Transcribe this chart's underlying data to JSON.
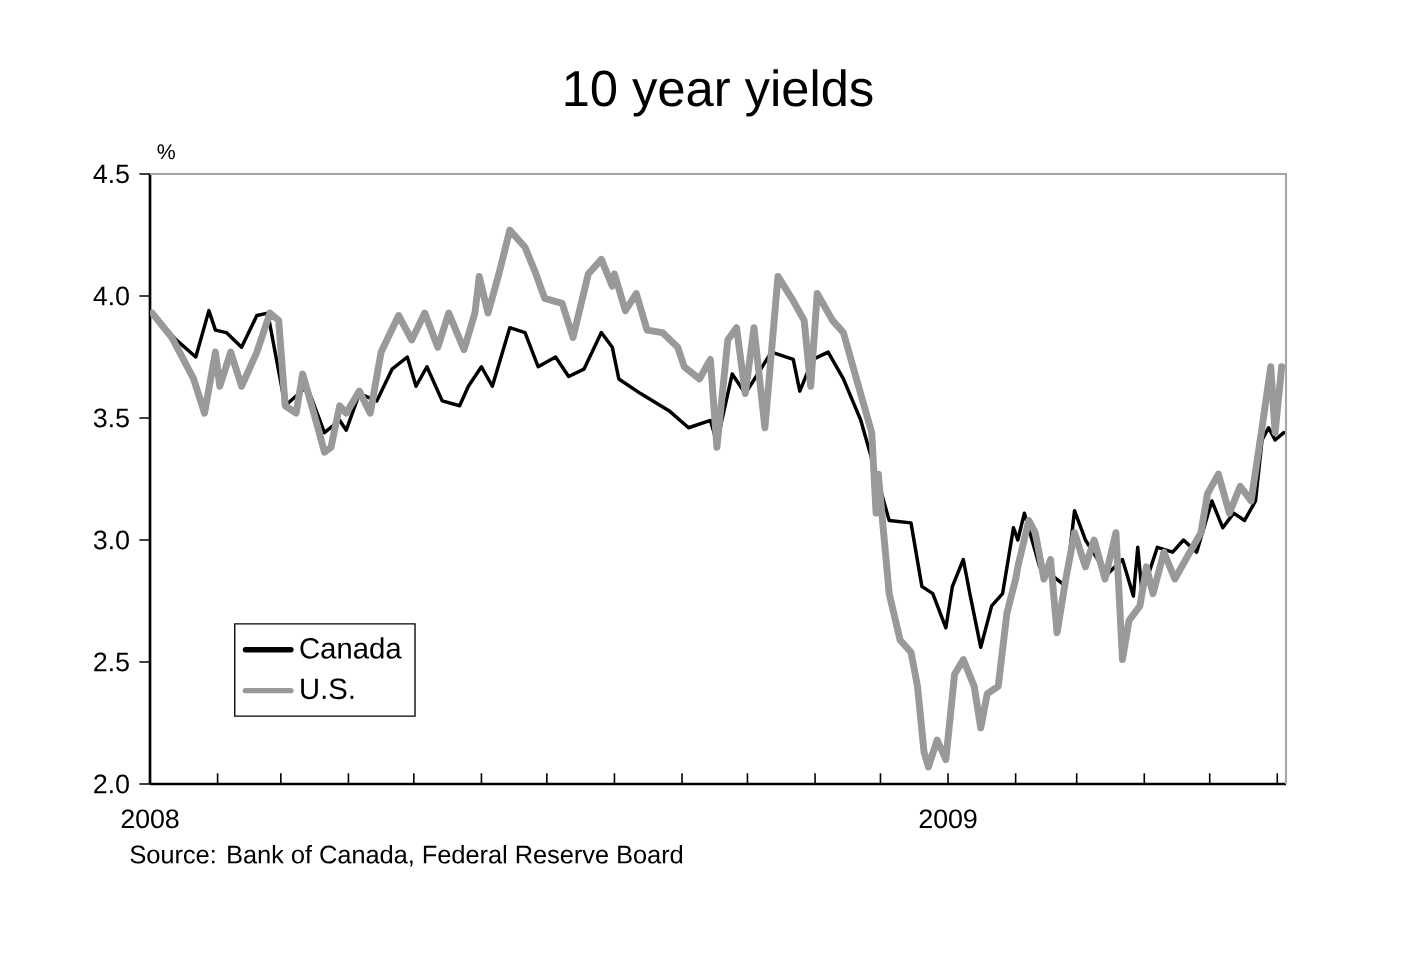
{
  "chart_data": {
    "type": "line",
    "title": "10 year yields",
    "ylabel": "%",
    "annotations": [
      "Source: Bank of Canada, Federal Reserve Board"
    ],
    "xlim": [
      "2008-01-01",
      "2009-06-05"
    ],
    "xticks": [
      {
        "value": "2008-01-01",
        "label": "2008"
      },
      {
        "value": "2008-02-01",
        "label": null
      },
      {
        "value": "2008-03-01",
        "label": null
      },
      {
        "value": "2008-04-01",
        "label": null
      },
      {
        "value": "2008-05-01",
        "label": null
      },
      {
        "value": "2008-06-01",
        "label": null
      },
      {
        "value": "2008-07-01",
        "label": null
      },
      {
        "value": "2008-08-01",
        "label": null
      },
      {
        "value": "2008-09-01",
        "label": null
      },
      {
        "value": "2008-10-01",
        "label": null
      },
      {
        "value": "2008-11-01",
        "label": null
      },
      {
        "value": "2008-12-01",
        "label": null
      },
      {
        "value": "2009-01-01",
        "label": "2009"
      },
      {
        "value": "2009-02-01",
        "label": null
      },
      {
        "value": "2009-03-01",
        "label": null
      },
      {
        "value": "2009-04-01",
        "label": null
      },
      {
        "value": "2009-05-01",
        "label": null
      },
      {
        "value": "2009-06-01",
        "label": null
      }
    ],
    "ylim": [
      2,
      4.5
    ],
    "yticks": [
      {
        "value": 2,
        "label": "2.0"
      },
      {
        "value": 2.5,
        "label": "2.5"
      },
      {
        "value": 3,
        "label": "3.0"
      },
      {
        "value": 3.5,
        "label": "3.5"
      },
      {
        "value": 4,
        "label": "4.0"
      },
      {
        "value": 4.5,
        "label": "4.5"
      }
    ],
    "legend": "bottom left",
    "grid": false,
    "marker": "none",
    "line_style": "solid",
    "series": [
      {
        "name": "Canada",
        "color": "#000000",
        "x": [
          "2008-01-02",
          "2008-01-13",
          "2008-01-22",
          "2008-01-28",
          "2008-01-31",
          "2008-02-05",
          "2008-02-12",
          "2008-02-19",
          "2008-02-24",
          "2008-03-03",
          "2008-03-13",
          "2008-03-21",
          "2008-03-28",
          "2008-03-31",
          "2008-04-06",
          "2008-04-14",
          "2008-04-21",
          "2008-04-28",
          "2008-05-02",
          "2008-05-07",
          "2008-05-14",
          "2008-05-22",
          "2008-05-26",
          "2008-06-01",
          "2008-06-06",
          "2008-06-14",
          "2008-06-21",
          "2008-06-27",
          "2008-07-05",
          "2008-07-11",
          "2008-07-18",
          "2008-07-26",
          "2008-07-31",
          "2008-08-03",
          "2008-08-13",
          "2008-08-26",
          "2008-09-04",
          "2008-09-14",
          "2008-09-17",
          "2008-09-24",
          "2008-09-30",
          "2008-10-12",
          "2008-10-22",
          "2008-10-25",
          "2008-10-31",
          "2008-11-07",
          "2008-11-14",
          "2008-11-22",
          "2008-11-29",
          "2008-12-05",
          "2008-12-15",
          "2008-12-20",
          "2008-12-25",
          "2008-12-31",
          "2009-01-03",
          "2009-01-08",
          "2009-01-11",
          "2009-01-16",
          "2009-01-21",
          "2009-01-26",
          "2009-01-31",
          "2009-02-02",
          "2009-02-05",
          "2009-02-12",
          "2009-02-17",
          "2009-02-24",
          "2009-02-28",
          "2009-03-05",
          "2009-03-15",
          "2009-03-22",
          "2009-03-27",
          "2009-03-29",
          "2009-03-31",
          "2009-04-07",
          "2009-04-14",
          "2009-04-19",
          "2009-04-25",
          "2009-05-02",
          "2009-05-07",
          "2009-05-12",
          "2009-05-17",
          "2009-05-22",
          "2009-05-25",
          "2009-05-28",
          "2009-05-31",
          "2009-06-04"
        ],
        "values": [
          3.93,
          3.82,
          3.75,
          3.94,
          3.86,
          3.85,
          3.79,
          3.92,
          3.93,
          3.55,
          3.63,
          3.44,
          3.49,
          3.45,
          3.6,
          3.57,
          3.7,
          3.75,
          3.63,
          3.71,
          3.57,
          3.55,
          3.63,
          3.71,
          3.63,
          3.87,
          3.85,
          3.71,
          3.75,
          3.67,
          3.7,
          3.85,
          3.79,
          3.66,
          3.6,
          3.53,
          3.46,
          3.49,
          3.4,
          3.68,
          3.6,
          3.77,
          3.74,
          3.61,
          3.74,
          3.77,
          3.66,
          3.49,
          3.27,
          3.08,
          3.07,
          2.81,
          2.78,
          2.64,
          2.81,
          2.92,
          2.78,
          2.56,
          2.73,
          2.78,
          3.05,
          3.0,
          3.11,
          2.89,
          2.86,
          2.81,
          3.12,
          3.0,
          2.86,
          2.92,
          2.77,
          2.97,
          2.78,
          2.97,
          2.95,
          3.0,
          2.95,
          3.16,
          3.05,
          3.11,
          3.08,
          3.16,
          3.41,
          3.46,
          3.41,
          3.44
        ]
      },
      {
        "name": "U.S.",
        "color": "#999999",
        "x": [
          "2008-01-02",
          "2008-01-11",
          "2008-01-21",
          "2008-01-26",
          "2008-01-31",
          "2008-02-02",
          "2008-02-07",
          "2008-02-12",
          "2008-02-19",
          "2008-02-25",
          "2008-02-29",
          "2008-03-03",
          "2008-03-08",
          "2008-03-11",
          "2008-03-18",
          "2008-03-21",
          "2008-03-24",
          "2008-03-28",
          "2008-03-31",
          "2008-04-06",
          "2008-04-11",
          "2008-04-16",
          "2008-04-24",
          "2008-04-30",
          "2008-05-06",
          "2008-05-12",
          "2008-05-17",
          "2008-05-24",
          "2008-05-29",
          "2008-05-31",
          "2008-06-04",
          "2008-06-09",
          "2008-06-14",
          "2008-06-21",
          "2008-06-26",
          "2008-06-30",
          "2008-07-08",
          "2008-07-13",
          "2008-07-20",
          "2008-07-26",
          "2008-07-31",
          "2008-08-01",
          "2008-08-06",
          "2008-08-11",
          "2008-08-16",
          "2008-08-23",
          "2008-08-30",
          "2008-09-02",
          "2008-09-09",
          "2008-09-14",
          "2008-09-17",
          "2008-09-22",
          "2008-09-26",
          "2008-09-30",
          "2008-10-04",
          "2008-10-09",
          "2008-10-15",
          "2008-10-22",
          "2008-10-27",
          "2008-10-30",
          "2008-11-02",
          "2008-11-09",
          "2008-11-14",
          "2008-11-20",
          "2008-11-27",
          "2008-11-29",
          "2008-11-30",
          "2008-12-05",
          "2008-12-10",
          "2008-12-15",
          "2008-12-18",
          "2008-12-21",
          "2008-12-23",
          "2008-12-27",
          "2008-12-31",
          "2009-01-04",
          "2009-01-08",
          "2009-01-13",
          "2009-01-16",
          "2009-01-19",
          "2009-01-24",
          "2009-01-28",
          "2009-02-01",
          "2009-02-02",
          "2009-02-07",
          "2009-02-10",
          "2009-02-14",
          "2009-02-17",
          "2009-02-20",
          "2009-02-24",
          "2009-02-28",
          "2009-03-05",
          "2009-03-09",
          "2009-03-14",
          "2009-03-19",
          "2009-03-22",
          "2009-03-25",
          "2009-03-30",
          "2009-04-02",
          "2009-04-05",
          "2009-04-10",
          "2009-04-15",
          "2009-04-20",
          "2009-04-27",
          "2009-04-30",
          "2009-05-05",
          "2009-05-10",
          "2009-05-15",
          "2009-05-20",
          "2009-05-25",
          "2009-05-29",
          "2009-05-31",
          "2009-06-03"
        ],
        "values": [
          3.93,
          3.83,
          3.66,
          3.52,
          3.77,
          3.63,
          3.77,
          3.63,
          3.77,
          3.93,
          3.9,
          3.55,
          3.52,
          3.68,
          3.46,
          3.36,
          3.38,
          3.55,
          3.52,
          3.61,
          3.52,
          3.77,
          3.92,
          3.82,
          3.93,
          3.79,
          3.93,
          3.78,
          3.93,
          4.08,
          3.93,
          4.09,
          4.27,
          4.2,
          4.09,
          3.99,
          3.97,
          3.83,
          4.09,
          4.15,
          4.04,
          4.09,
          3.94,
          4.01,
          3.86,
          3.85,
          3.79,
          3.71,
          3.66,
          3.74,
          3.38,
          3.82,
          3.87,
          3.6,
          3.87,
          3.46,
          4.08,
          3.98,
          3.9,
          3.63,
          4.01,
          3.9,
          3.85,
          3.66,
          3.44,
          3.11,
          3.27,
          2.78,
          2.59,
          2.54,
          2.4,
          2.13,
          2.07,
          2.18,
          2.1,
          2.45,
          2.51,
          2.4,
          2.23,
          2.37,
          2.4,
          2.7,
          2.84,
          2.89,
          3.08,
          3.03,
          2.84,
          2.92,
          2.62,
          2.84,
          3.03,
          2.89,
          3.0,
          2.84,
          3.03,
          2.51,
          2.67,
          2.73,
          2.89,
          2.78,
          2.95,
          2.84,
          2.92,
          3.03,
          3.19,
          3.27,
          3.11,
          3.22,
          3.16,
          3.46,
          3.71,
          3.44,
          3.71
        ]
      }
    ]
  }
}
